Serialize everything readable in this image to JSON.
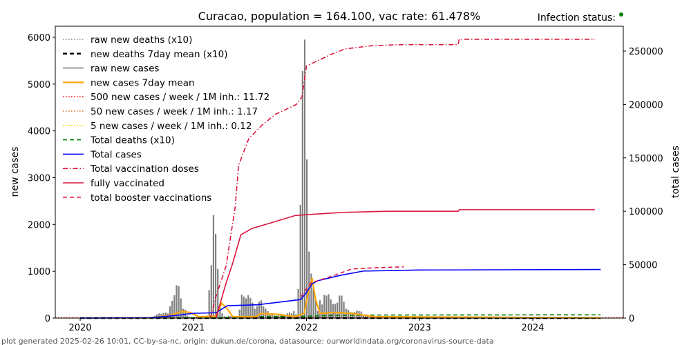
{
  "chart_data": {
    "type": "bar+line",
    "title": "Curacao, population = 164.100, vac rate: 61.478%",
    "status_label": "Infection status:",
    "status_color": "#008000",
    "ylabel_left": "new cases",
    "ylabel_right": "total cases",
    "xlim": [
      2019.78,
      2024.8
    ],
    "ylim_left": [
      0,
      6236
    ],
    "ylim_right": [
      0,
      273250
    ],
    "x_ticks": [
      "2020",
      "2021",
      "2022",
      "2023",
      "2024"
    ],
    "y_ticks_left": [
      "0",
      "1000",
      "2000",
      "3000",
      "4000",
      "5000",
      "6000"
    ],
    "y_ticks_right": [
      "0",
      "50000",
      "100000",
      "150000",
      "200000",
      "250000"
    ],
    "legend": [
      {
        "label": "raw new deaths (x10)",
        "color": "#808080",
        "style": "dotted"
      },
      {
        "label": "new deaths 7day mean (x10)",
        "color": "#000000",
        "style": "dashed-bold"
      },
      {
        "label": "raw new cases",
        "color": "#808080",
        "style": "solid"
      },
      {
        "label": "new cases 7day mean",
        "color": "#FFA500",
        "style": "solid-bold"
      },
      {
        "label": "500 new cases / week / 1M inh.: 11.72",
        "color": "#FF0000",
        "style": "dotted"
      },
      {
        "label": "50 new cases / week / 1M inh.: 1.17",
        "color": "#D2691E",
        "style": "dotted"
      },
      {
        "label": "5 new cases / week / 1M inh.: 0.12",
        "color": "#FFD700",
        "style": "dotted"
      },
      {
        "label": "Total deaths (x10)",
        "color": "#008000",
        "style": "dashed"
      },
      {
        "label": "Total cases",
        "color": "#0000FF",
        "style": "solid"
      },
      {
        "label": "Total vaccination doses",
        "color": "#DC143C",
        "style": "dashdot"
      },
      {
        "label": "fully vaccinated",
        "color": "#DC143C",
        "style": "solid"
      },
      {
        "label": "total booster vaccinations",
        "color": "#DC143C",
        "style": "dashed"
      }
    ],
    "raw_new_cases": {
      "start": 2020.64,
      "step": 0.0192,
      "values": [
        30,
        50,
        80,
        100,
        90,
        110,
        120,
        100,
        250,
        370,
        490,
        700,
        680,
        420,
        200,
        180,
        50,
        30,
        20,
        20,
        30,
        40,
        30,
        20,
        30,
        20,
        600,
        1130,
        2200,
        1800,
        1050,
        300,
        100,
        40,
        30,
        50,
        40,
        30,
        40,
        30,
        180,
        500,
        460,
        420,
        490,
        430,
        330,
        200,
        250,
        350,
        380,
        250,
        200,
        150,
        100,
        80,
        60,
        50,
        60,
        80,
        70,
        60,
        100,
        120,
        100,
        150,
        80,
        620,
        2420,
        5280,
        5950,
        3390,
        1420,
        950,
        650,
        400,
        150,
        380,
        290,
        500,
        480,
        510,
        400,
        300,
        300,
        330,
        480,
        480,
        350,
        200,
        180,
        130,
        120,
        130,
        160,
        150,
        140,
        80,
        60,
        40
      ]
    },
    "new_cases_7day_mean": [
      [
        2020.6,
        0
      ],
      [
        2020.8,
        60
      ],
      [
        2020.9,
        140
      ],
      [
        2020.97,
        120
      ],
      [
        2021.05,
        30
      ],
      [
        2021.2,
        40
      ],
      [
        2021.25,
        320
      ],
      [
        2021.3,
        200
      ],
      [
        2021.35,
        30
      ],
      [
        2021.55,
        30
      ],
      [
        2021.6,
        100
      ],
      [
        2021.75,
        80
      ],
      [
        2021.9,
        30
      ],
      [
        2021.98,
        100
      ],
      [
        2022.02,
        600
      ],
      [
        2022.05,
        850
      ],
      [
        2022.08,
        400
      ],
      [
        2022.12,
        100
      ],
      [
        2022.25,
        120
      ],
      [
        2022.4,
        100
      ],
      [
        2022.6,
        30
      ],
      [
        2024.6,
        5
      ]
    ],
    "total_deaths_x10": [
      [
        2020.0,
        0
      ],
      [
        2021.2,
        5
      ],
      [
        2021.5,
        30
      ],
      [
        2022.0,
        40
      ],
      [
        2022.2,
        55
      ],
      [
        2022.6,
        65
      ],
      [
        2024.6,
        70
      ]
    ],
    "total_cases": [
      [
        2020.0,
        0
      ],
      [
        2020.6,
        200
      ],
      [
        2020.85,
        2500
      ],
      [
        2021.0,
        4500
      ],
      [
        2021.2,
        5000
      ],
      [
        2021.3,
        11600
      ],
      [
        2021.57,
        12500
      ],
      [
        2021.95,
        17400
      ],
      [
        2022.0,
        24000
      ],
      [
        2022.05,
        32000
      ],
      [
        2022.1,
        35000
      ],
      [
        2022.3,
        40000
      ],
      [
        2022.5,
        44000
      ],
      [
        2023.0,
        45000
      ],
      [
        2024.6,
        45500
      ]
    ],
    "total_vaccination_doses": [
      [
        2021.15,
        0
      ],
      [
        2021.2,
        20000
      ],
      [
        2021.29,
        49000
      ],
      [
        2021.37,
        104000
      ],
      [
        2021.4,
        143000
      ],
      [
        2021.49,
        168000
      ],
      [
        2021.61,
        181000
      ],
      [
        2021.73,
        191000
      ],
      [
        2021.91,
        200000
      ],
      [
        2021.96,
        207000
      ],
      [
        2022.0,
        236000
      ],
      [
        2022.1,
        241000
      ],
      [
        2022.22,
        247000
      ],
      [
        2022.34,
        252000
      ],
      [
        2022.58,
        255000
      ],
      [
        2022.83,
        256000
      ],
      [
        2023.34,
        256000
      ],
      [
        2023.35,
        261000
      ],
      [
        2024.55,
        261000
      ]
    ],
    "fully_vaccinated": [
      [
        2021.2,
        0
      ],
      [
        2021.29,
        33000
      ],
      [
        2021.35,
        52000
      ],
      [
        2021.42,
        78000
      ],
      [
        2021.52,
        84000
      ],
      [
        2021.65,
        88000
      ],
      [
        2021.9,
        96000
      ],
      [
        2022.1,
        97500
      ],
      [
        2022.34,
        99000
      ],
      [
        2022.7,
        100000
      ],
      [
        2023.34,
        100000
      ],
      [
        2023.35,
        101500
      ],
      [
        2024.55,
        101500
      ]
    ],
    "total_booster_vaccinations": [
      [
        2021.95,
        20000
      ],
      [
        2022.04,
        33000
      ],
      [
        2022.22,
        39000
      ],
      [
        2022.4,
        46000
      ],
      [
        2022.58,
        47000
      ],
      [
        2022.86,
        48000
      ]
    ],
    "thresholds": [
      11.72,
      1.17,
      0.12
    ],
    "footer": "plot generated 2025-02-26 10:01, CC-by-sa-nc, origin: dukun.de/corona, datasource: ourworldindata.org/coronavirus-source-data"
  }
}
